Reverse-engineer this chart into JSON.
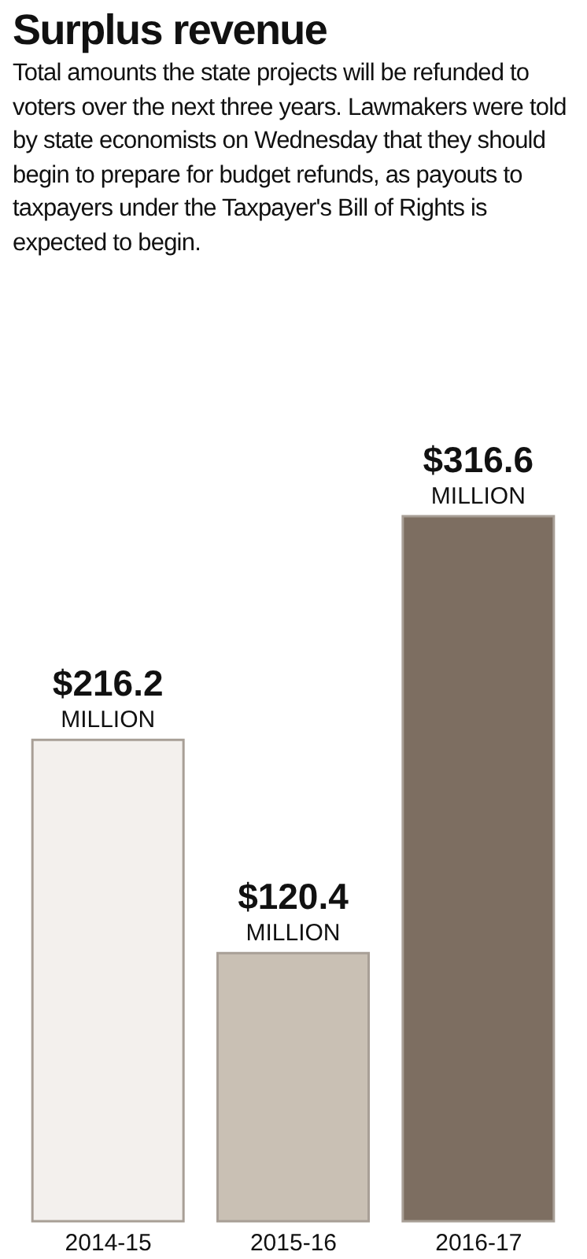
{
  "chart_data": {
    "type": "bar",
    "title": "Surplus revenue",
    "subtitle": "Total amounts the state projects will be refunded to voters over the next three years. Lawmakers were told by state economists on Wednesday that they should begin to prepare for budget refunds, as payouts to taxpayers under the Taxpayer's Bill of Rights is expected to begin.",
    "categories": [
      "2014-15",
      "2015-16",
      "2016-17"
    ],
    "values": [
      216.2,
      120.4,
      316.6
    ],
    "colors": [
      "#f3f0ed",
      "#c9c0b4",
      "#7d6e61"
    ],
    "value_labels": [
      "$216.2 MILLION",
      "$120.4 MILLION",
      "$316.6 MILLION"
    ],
    "tick_labels": "x"
  }
}
